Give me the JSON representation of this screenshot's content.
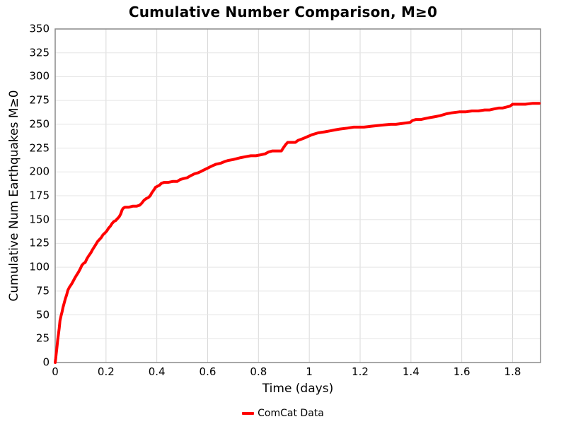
{
  "title": "Cumulative Number Comparison, M≥0",
  "colors": {
    "line": "#ff0000",
    "grid_horizontal": "#e5e5e5",
    "grid_vertical": "#d9d9d9",
    "spine": "#8a8a8a",
    "text": "#000000",
    "background": "#ffffff"
  },
  "legend": {
    "entries": [
      {
        "label": "ComCat Data",
        "color": "#ff0000"
      }
    ]
  },
  "chart_data": {
    "type": "line",
    "title": "Cumulative Number Comparison, M≥0",
    "xlabel": "Time (days)",
    "ylabel": "Cumulative Num Earthquakes M≥0",
    "xlim": [
      0,
      1.91
    ],
    "ylim": [
      0,
      350
    ],
    "x_ticks": [
      0,
      0.2,
      0.4,
      0.6,
      0.8,
      1,
      1.2,
      1.4,
      1.6,
      1.8
    ],
    "x_tick_labels": [
      "0",
      "0.2",
      "0.4",
      "0.6",
      "0.8",
      "1",
      "1.2",
      "1.4",
      "1.6",
      "1.8"
    ],
    "y_ticks": [
      0,
      25,
      50,
      75,
      100,
      125,
      150,
      175,
      200,
      225,
      250,
      275,
      300,
      325,
      350
    ],
    "grid": true,
    "legend_position": "bottom-center",
    "series": [
      {
        "name": "ComCat Data",
        "color": "#ff0000",
        "line_width": 4,
        "x": [
          0,
          0.002,
          0.004,
          0.006,
          0.008,
          0.01,
          0.013,
          0.016,
          0.019,
          0.023,
          0.027,
          0.031,
          0.035,
          0.04,
          0.045,
          0.05,
          0.056,
          0.061,
          0.066,
          0.072,
          0.078,
          0.085,
          0.092,
          0.1,
          0.105,
          0.112,
          0.118,
          0.125,
          0.132,
          0.14,
          0.146,
          0.153,
          0.16,
          0.167,
          0.174,
          0.181,
          0.188,
          0.196,
          0.203,
          0.21,
          0.217,
          0.224,
          0.231,
          0.238,
          0.245,
          0.252,
          0.258,
          0.263,
          0.268,
          0.275,
          0.29,
          0.305,
          0.32,
          0.332,
          0.34,
          0.349,
          0.358,
          0.366,
          0.374,
          0.38,
          0.388,
          0.395,
          0.403,
          0.41,
          0.418,
          0.428,
          0.445,
          0.462,
          0.48,
          0.492,
          0.505,
          0.52,
          0.533,
          0.548,
          0.562,
          0.57,
          0.585,
          0.6,
          0.615,
          0.632,
          0.65,
          0.668,
          0.68,
          0.7,
          0.715,
          0.73,
          0.75,
          0.77,
          0.79,
          0.81,
          0.826,
          0.84,
          0.855,
          0.89,
          0.9,
          0.908,
          0.915,
          0.945,
          0.955,
          0.975,
          0.993,
          1.01,
          1.035,
          1.06,
          1.08,
          1.1,
          1.12,
          1.15,
          1.175,
          1.215,
          1.245,
          1.28,
          1.32,
          1.341,
          1.37,
          1.397,
          1.406,
          1.42,
          1.44,
          1.455,
          1.475,
          1.495,
          1.515,
          1.54,
          1.56,
          1.59,
          1.615,
          1.64,
          1.665,
          1.69,
          1.71,
          1.725,
          1.745,
          1.76,
          1.775,
          1.79,
          1.8,
          1.815,
          1.85,
          1.88,
          1.905
        ],
        "y": [
          0,
          4,
          9,
          14,
          19,
          24,
          30,
          36,
          44,
          49,
          53,
          58,
          62,
          67,
          71,
          76,
          79,
          81,
          83,
          86,
          89,
          92,
          95,
          99,
          102,
          104,
          105,
          109,
          112,
          115,
          118,
          121,
          124,
          127,
          129,
          131,
          134,
          136,
          138,
          141,
          143,
          146,
          148,
          149,
          151,
          153,
          156,
          160,
          162,
          163,
          163,
          164,
          164,
          165,
          167,
          170,
          172,
          173,
          175,
          178,
          181,
          184,
          185,
          186,
          188,
          189,
          189,
          190,
          190,
          192,
          193,
          194,
          196,
          198,
          199,
          200,
          202,
          204,
          206,
          208,
          209,
          211,
          212,
          213,
          214,
          215,
          216,
          217,
          217,
          218,
          219,
          221,
          222,
          222,
          226,
          229,
          231,
          231,
          233,
          235,
          237,
          239,
          241,
          242,
          243,
          244,
          245,
          246,
          247,
          247,
          248,
          249,
          250,
          250,
          251,
          252,
          254,
          255,
          255,
          256,
          257,
          258,
          259,
          261,
          262,
          263,
          263,
          264,
          264,
          265,
          265,
          266,
          267,
          267,
          268,
          269,
          271,
          271,
          271,
          272,
          272
        ]
      }
    ]
  }
}
